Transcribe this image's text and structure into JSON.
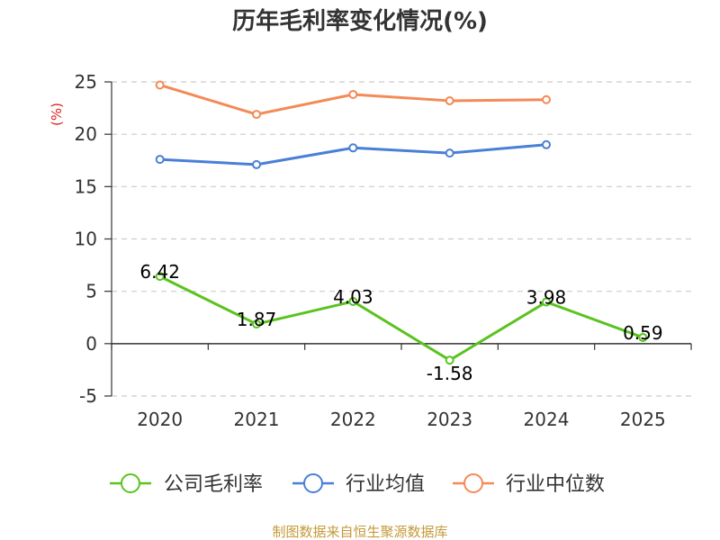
{
  "chart_data": {
    "type": "line",
    "title": "历年毛利率变化情况(%)",
    "unit_label": "(%)",
    "categories": [
      "2020",
      "2021",
      "2022",
      "2023",
      "2024",
      "2025"
    ],
    "y_ticks": [
      "25",
      "20",
      "15",
      "10",
      "5",
      "0",
      "-5"
    ],
    "ylim": [
      -5,
      25
    ],
    "grid": true,
    "legend_position": "bottom",
    "series": [
      {
        "name": "公司毛利率",
        "color": "#5ac31f",
        "values": [
          6.42,
          1.87,
          4.03,
          -1.58,
          3.98,
          0.59
        ],
        "labels": [
          "6.42",
          "1.87",
          "4.03",
          "-1.58",
          "3.98",
          "0.59"
        ]
      },
      {
        "name": "行业均值",
        "color": "#4a7fd8",
        "values": [
          17.6,
          17.1,
          18.7,
          18.2,
          19.0,
          null
        ]
      },
      {
        "name": "行业中位数",
        "color": "#f48a56",
        "values": [
          24.7,
          21.9,
          23.8,
          23.2,
          23.3,
          null
        ]
      }
    ],
    "source": "制图数据来自恒生聚源数据库"
  }
}
